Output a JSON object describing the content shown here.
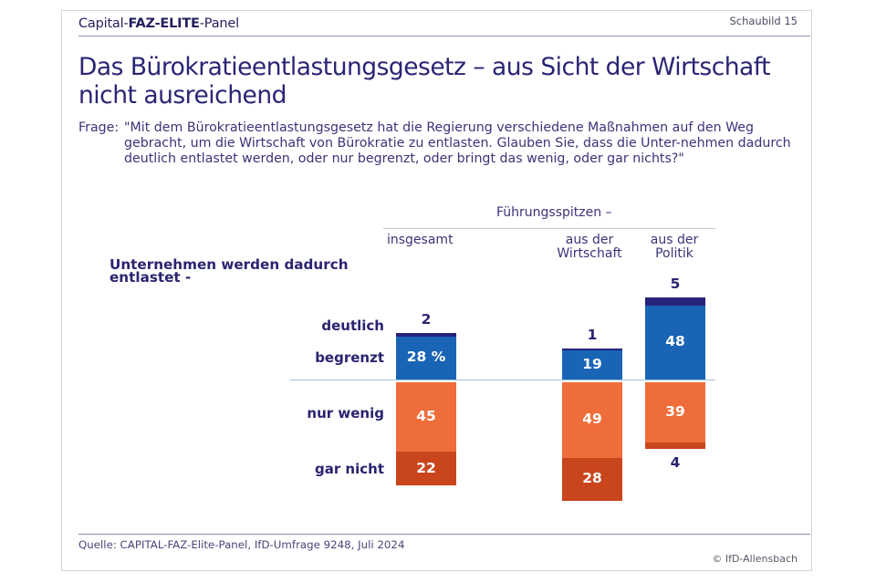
{
  "header": {
    "brand_part1": "Capital-",
    "brand_part2": "FAZ-ELITE",
    "brand_part3": "-Panel",
    "figure_label": "Schaubild 15"
  },
  "title_line1": "Das Bürokratieentlastungsgesetz – aus Sicht der Wirtschaft",
  "title_line2": "nicht ausreichend",
  "question": {
    "label": "Frage:",
    "text": "\"Mit dem Bürokratieentlastungsgesetz hat die Regierung verschiedene Maßnahmen auf den Weg gebracht, um die Wirtschaft von Bürokratie zu entlasten. Glauben Sie, dass die Unter-nehmen dadurch deutlich entlastet werden, oder nur begrenzt, oder bringt das wenig, oder gar nichts?\""
  },
  "footer": {
    "source": "Quelle: CAPITAL-FAZ-Elite-Panel, IfD-Umfrage 9248, Juli 2024",
    "copyright": "© IfD-Allensbach"
  },
  "colors": {
    "deutlich": "#27237a",
    "begrenzt": "#1a64b6",
    "nur_wenig": "#ef6d3b",
    "gar_nicht": "#c9461c",
    "text": "#2a2470"
  },
  "chart_data": {
    "type": "bar",
    "subtype": "diverging-stacked",
    "title": "Das Bürokratieentlastungsgesetz – aus Sicht der Wirtschaft nicht ausreichend",
    "row_header": "Unternehmen werden dadurch entlastet -",
    "group_header": "Führungsspitzen –",
    "categories": [
      "insgesamt",
      "aus der Wirtschaft",
      "aus der Politik"
    ],
    "category_lines": [
      [
        "insgesamt"
      ],
      [
        "aus der",
        "Wirtschaft"
      ],
      [
        "aus der",
        "Politik"
      ]
    ],
    "unit": "%",
    "series": [
      {
        "name": "deutlich",
        "direction": "up",
        "values": [
          2,
          1,
          5
        ],
        "labels": [
          "2",
          "1",
          "5"
        ]
      },
      {
        "name": "begrenzt",
        "direction": "up",
        "values": [
          28,
          19,
          48
        ],
        "labels": [
          "28 %",
          "19",
          "48"
        ]
      },
      {
        "name": "nur wenig",
        "direction": "down",
        "values": [
          45,
          49,
          39
        ],
        "labels": [
          "45",
          "49",
          "39"
        ]
      },
      {
        "name": "gar nicht",
        "direction": "down",
        "values": [
          22,
          28,
          4
        ],
        "labels": [
          "22",
          "28",
          "4"
        ]
      }
    ],
    "legend": "row labels left"
  }
}
